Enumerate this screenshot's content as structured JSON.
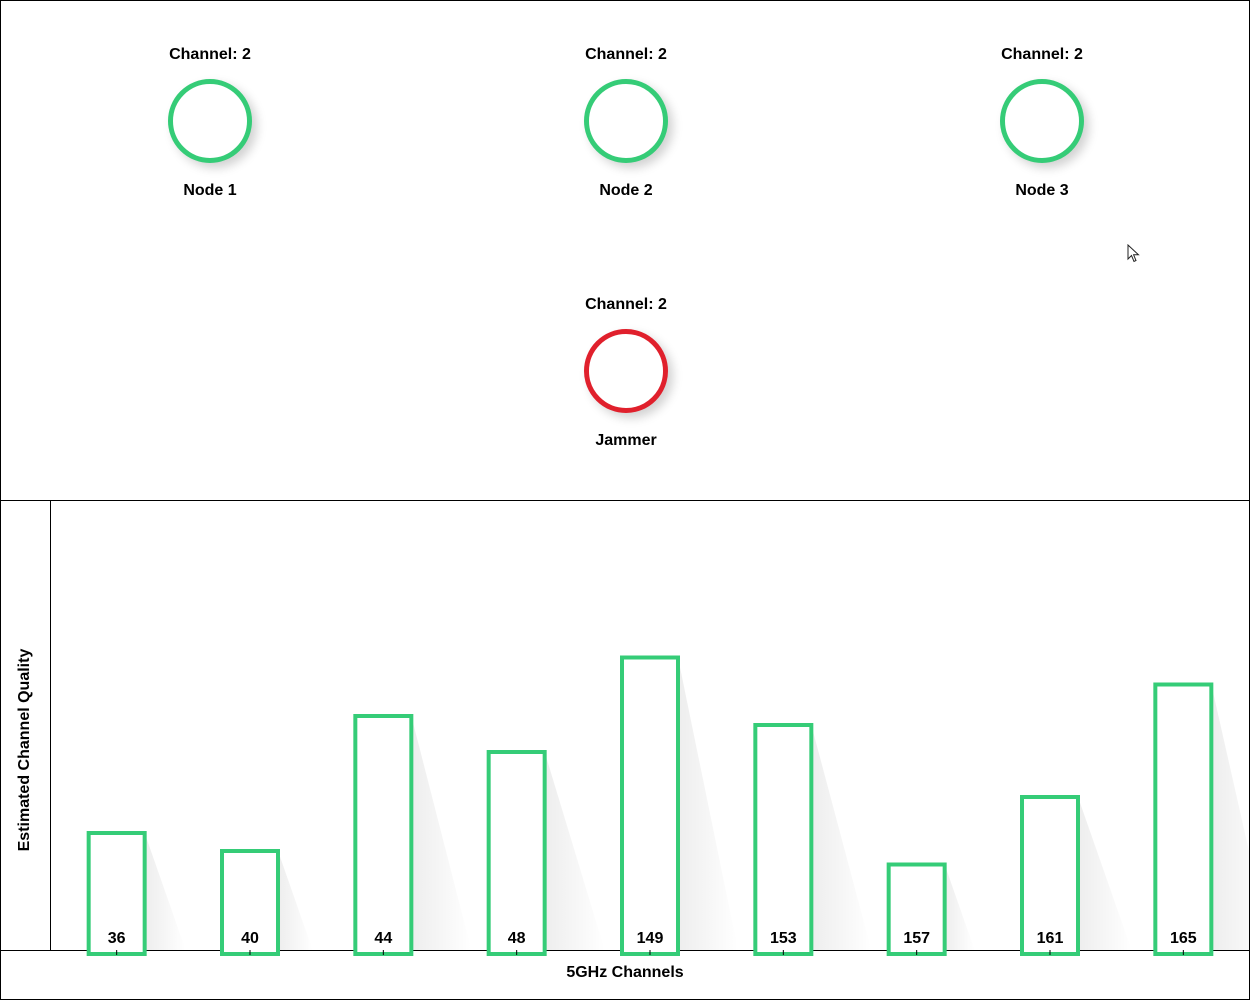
{
  "nodes": [
    {
      "channel_label": "Channel: 2",
      "name": "Node 1",
      "status_color": "#35cc77"
    },
    {
      "channel_label": "Channel: 2",
      "name": "Node 2",
      "status_color": "#35cc77"
    },
    {
      "channel_label": "Channel: 2",
      "name": "Node 3",
      "status_color": "#35cc77"
    },
    {
      "channel_label": "Channel: 2",
      "name": "Jammer",
      "status_color": "#e0202c"
    }
  ],
  "chart_data": {
    "type": "bar",
    "categories": [
      "36",
      "40",
      "44",
      "48",
      "149",
      "153",
      "157",
      "161",
      "165"
    ],
    "values": [
      26,
      22,
      52,
      44,
      65,
      50,
      19,
      34,
      59
    ],
    "xlabel": "5GHz Channels",
    "ylabel": "Estimated Channel Quality",
    "ylim": [
      0,
      100
    ],
    "grid": false,
    "bar_color": "#35cc77"
  }
}
